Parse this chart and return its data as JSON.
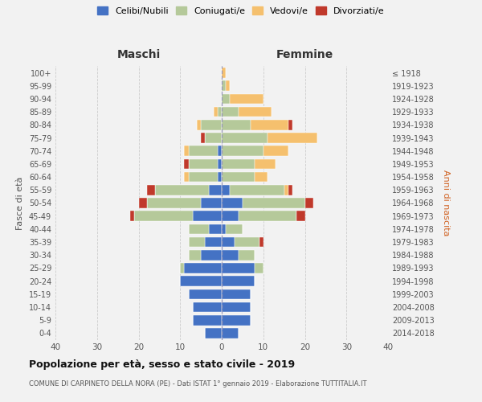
{
  "age_groups": [
    "0-4",
    "5-9",
    "10-14",
    "15-19",
    "20-24",
    "25-29",
    "30-34",
    "35-39",
    "40-44",
    "45-49",
    "50-54",
    "55-59",
    "60-64",
    "65-69",
    "70-74",
    "75-79",
    "80-84",
    "85-89",
    "90-94",
    "95-99",
    "100+"
  ],
  "birth_years": [
    "2014-2018",
    "2009-2013",
    "2004-2008",
    "1999-2003",
    "1994-1998",
    "1989-1993",
    "1984-1988",
    "1979-1983",
    "1974-1978",
    "1969-1973",
    "1964-1968",
    "1959-1963",
    "1954-1958",
    "1949-1953",
    "1944-1948",
    "1939-1943",
    "1934-1938",
    "1929-1933",
    "1924-1928",
    "1919-1923",
    "≤ 1918"
  ],
  "maschi": {
    "celibi": [
      4,
      7,
      7,
      8,
      10,
      9,
      5,
      4,
      3,
      7,
      5,
      3,
      1,
      1,
      1,
      0,
      0,
      0,
      0,
      0,
      0
    ],
    "coniugati": [
      0,
      0,
      0,
      0,
      0,
      1,
      3,
      4,
      5,
      14,
      13,
      13,
      7,
      7,
      7,
      4,
      5,
      1,
      0,
      0,
      0
    ],
    "vedovi": [
      0,
      0,
      0,
      0,
      0,
      0,
      0,
      0,
      0,
      0,
      0,
      0,
      1,
      0,
      1,
      0,
      1,
      1,
      0,
      0,
      0
    ],
    "divorziati": [
      0,
      0,
      0,
      0,
      0,
      0,
      0,
      0,
      0,
      1,
      2,
      2,
      0,
      1,
      0,
      1,
      0,
      0,
      0,
      0,
      0
    ]
  },
  "femmine": {
    "nubili": [
      4,
      7,
      7,
      7,
      8,
      8,
      4,
      3,
      1,
      4,
      5,
      2,
      0,
      0,
      0,
      0,
      0,
      0,
      0,
      0,
      0
    ],
    "coniugate": [
      0,
      0,
      0,
      0,
      0,
      2,
      4,
      6,
      4,
      14,
      15,
      13,
      8,
      8,
      10,
      11,
      7,
      4,
      2,
      1,
      0
    ],
    "vedove": [
      0,
      0,
      0,
      0,
      0,
      0,
      0,
      0,
      0,
      0,
      0,
      1,
      3,
      5,
      6,
      12,
      9,
      8,
      8,
      1,
      1
    ],
    "divorziate": [
      0,
      0,
      0,
      0,
      0,
      0,
      0,
      1,
      0,
      2,
      2,
      1,
      0,
      0,
      0,
      0,
      1,
      0,
      0,
      0,
      0
    ]
  },
  "colors": {
    "celibi_nubili": "#4472c4",
    "coniugati": "#b5c99a",
    "vedovi": "#f5c06e",
    "divorziati": "#c0392b"
  },
  "xlim": 40,
  "title": "Popolazione per età, sesso e stato civile - 2019",
  "subtitle": "COMUNE DI CARPINETO DELLA NORA (PE) - Dati ISTAT 1° gennaio 2019 - Elaborazione TUTTITALIA.IT",
  "ylabel_left": "Fasce di età",
  "ylabel_right": "Anni di nascita",
  "header_left": "Maschi",
  "header_right": "Femmine",
  "bg_color": "#f2f2f2",
  "grid_color": "#cccccc"
}
